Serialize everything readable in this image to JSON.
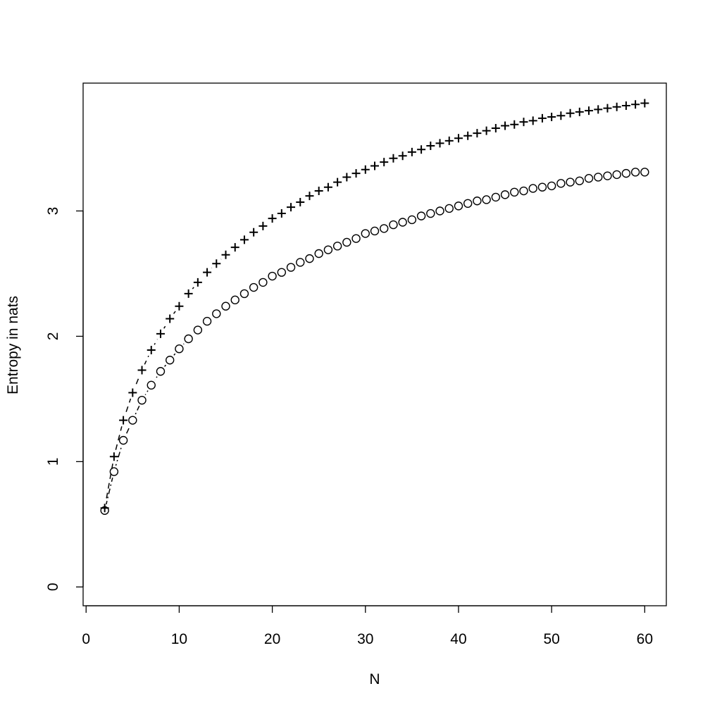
{
  "chart_data": {
    "type": "scatter",
    "xlabel": "N",
    "ylabel": "Entropy in nats",
    "x": [
      2,
      3,
      4,
      5,
      6,
      7,
      8,
      9,
      10,
      11,
      12,
      13,
      14,
      15,
      16,
      17,
      18,
      19,
      20,
      21,
      22,
      23,
      24,
      25,
      26,
      27,
      28,
      29,
      30,
      31,
      32,
      33,
      34,
      35,
      36,
      37,
      38,
      39,
      40,
      41,
      42,
      43,
      44,
      45,
      46,
      47,
      48,
      49,
      50,
      51,
      52,
      53,
      54,
      55,
      56,
      57,
      58,
      59,
      60
    ],
    "series": [
      {
        "marker": "plus",
        "color": "#000000",
        "dash": "8 6",
        "values": [
          0.63,
          1.04,
          1.33,
          1.55,
          1.73,
          1.89,
          2.02,
          2.14,
          2.24,
          2.34,
          2.43,
          2.51,
          2.58,
          2.65,
          2.71,
          2.77,
          2.83,
          2.88,
          2.94,
          2.98,
          3.03,
          3.07,
          3.12,
          3.16,
          3.19,
          3.23,
          3.27,
          3.3,
          3.33,
          3.36,
          3.39,
          3.42,
          3.44,
          3.47,
          3.49,
          3.52,
          3.54,
          3.56,
          3.58,
          3.6,
          3.62,
          3.64,
          3.66,
          3.68,
          3.69,
          3.71,
          3.72,
          3.74,
          3.75,
          3.76,
          3.78,
          3.79,
          3.8,
          3.81,
          3.82,
          3.83,
          3.84,
          3.85,
          3.86
        ]
      },
      {
        "marker": "circle",
        "color": "#000000",
        "dash": "2 4 8 4",
        "values": [
          0.61,
          0.92,
          1.17,
          1.33,
          1.49,
          1.61,
          1.72,
          1.81,
          1.9,
          1.98,
          2.05,
          2.12,
          2.18,
          2.24,
          2.29,
          2.34,
          2.39,
          2.43,
          2.48,
          2.51,
          2.55,
          2.59,
          2.62,
          2.66,
          2.69,
          2.72,
          2.75,
          2.78,
          2.82,
          2.84,
          2.86,
          2.89,
          2.91,
          2.93,
          2.96,
          2.98,
          3.0,
          3.02,
          3.04,
          3.06,
          3.08,
          3.09,
          3.11,
          3.13,
          3.15,
          3.16,
          3.18,
          3.19,
          3.2,
          3.22,
          3.23,
          3.24,
          3.26,
          3.27,
          3.28,
          3.29,
          3.3,
          3.31,
          3.31
        ]
      }
    ],
    "xlim": [
      -0.32,
      62.32
    ],
    "ylim": [
      -0.15,
      4.02
    ],
    "xticks": [
      0,
      10,
      20,
      30,
      40,
      50,
      60
    ],
    "yticks": [
      0,
      1,
      2,
      3
    ]
  }
}
